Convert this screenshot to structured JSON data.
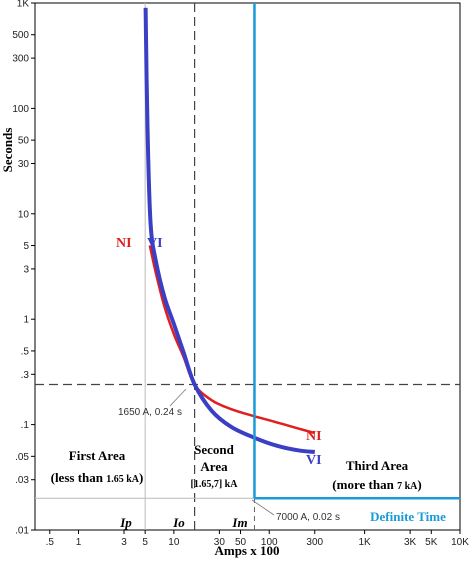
{
  "chart_data": {
    "type": "line",
    "xlabel": "Amps x 100",
    "ylabel": "Seconds",
    "x_scale": "log",
    "y_scale": "log",
    "xlim": [
      0.35,
      10000
    ],
    "ylim": [
      0.01,
      1000
    ],
    "x_ticks": [
      {
        "v": 0.5,
        "t": ".5"
      },
      {
        "v": 1,
        "t": "1"
      },
      {
        "v": 3,
        "t": "3"
      },
      {
        "v": 5,
        "t": "5"
      },
      {
        "v": 10,
        "t": "10"
      },
      {
        "v": 30,
        "t": "30"
      },
      {
        "v": 50,
        "t": "50"
      },
      {
        "v": 100,
        "t": "100"
      },
      {
        "v": 300,
        "t": "300"
      },
      {
        "v": 1000,
        "t": "1K"
      },
      {
        "v": 3000,
        "t": "3K"
      },
      {
        "v": 5000,
        "t": "5K"
      },
      {
        "v": 10000,
        "t": "10K"
      }
    ],
    "y_ticks": [
      {
        "v": 0.01,
        "t": ".01"
      },
      {
        "v": 0.03,
        "t": ".03"
      },
      {
        "v": 0.05,
        "t": ".05"
      },
      {
        "v": 0.1,
        "t": ".1"
      },
      {
        "v": 0.3,
        "t": ".3"
      },
      {
        "v": 0.5,
        "t": ".5"
      },
      {
        "v": 1,
        "t": "1"
      },
      {
        "v": 3,
        "t": "3"
      },
      {
        "v": 5,
        "t": "5"
      },
      {
        "v": 10,
        "t": "10"
      },
      {
        "v": 30,
        "t": "30"
      },
      {
        "v": 50,
        "t": "50"
      },
      {
        "v": 100,
        "t": "100"
      },
      {
        "v": 300,
        "t": "300"
      },
      {
        "v": 500,
        "t": "500"
      },
      {
        "v": 1000,
        "t": "1K"
      }
    ],
    "series": [
      {
        "name": "NI",
        "color": "#e02020",
        "x": [
          5.6,
          6.5,
          8,
          10,
          12.5,
          16.5,
          25,
          40,
          70,
          120,
          200,
          300
        ],
        "y": [
          5.0,
          2.7,
          1.3,
          0.72,
          0.45,
          0.24,
          0.17,
          0.14,
          0.12,
          0.105,
          0.092,
          0.083
        ]
      },
      {
        "name": "VI",
        "color": "#3a3fc4",
        "x": [
          5.05,
          5.3,
          5.7,
          6.5,
          8,
          10,
          12.5,
          16.5,
          25,
          40,
          70,
          120,
          200,
          300
        ],
        "y": [
          900,
          60,
          8,
          3.5,
          1.6,
          0.9,
          0.5,
          0.24,
          0.135,
          0.095,
          0.075,
          0.063,
          0.057,
          0.055
        ]
      }
    ],
    "definite_time": {
      "color": "#1a9bd7",
      "x_start": 70,
      "y": 0.02,
      "label": "Definite Time"
    },
    "reference_lines": {
      "h_dashed_y": 0.24,
      "v_dashed_x": 16.5,
      "ip_x": 5,
      "im_x": 70,
      "h_thin_y": 0.02
    },
    "markers": {
      "ip": "Ip",
      "io": "Io",
      "im": "Im"
    },
    "annotations": {
      "pickup_point": "1650 A, 0.24 s",
      "dt_point": "7000 A, 0.02 s"
    },
    "areas": {
      "first_title": "First Area",
      "first_sub_a": "(less than ",
      "first_sub_b": "1.65 kA",
      "first_sub_c": ")",
      "second_title_a": "Second",
      "second_title_b": "Area",
      "second_sub": "[1.65,7] kA",
      "third_title": "Third Area",
      "third_sub_a": "(more than ",
      "third_sub_b": "7 kA",
      "third_sub_c": ")"
    },
    "curve_labels": {
      "ni_left": "NI",
      "vi_left": "VI",
      "ni_right": "NI",
      "vi_right": "VI"
    },
    "grid": false,
    "legend": "none"
  }
}
